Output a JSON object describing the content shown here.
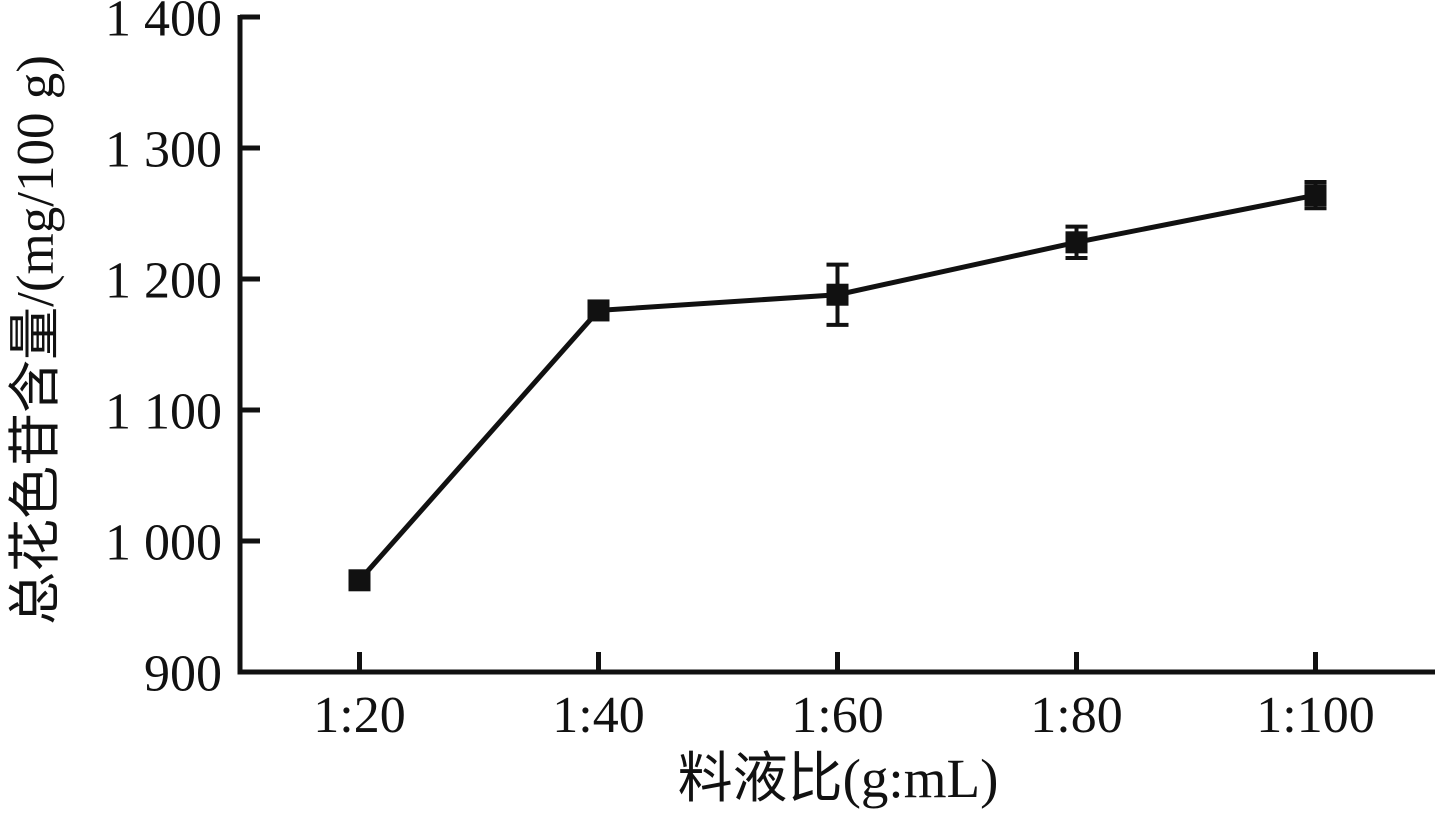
{
  "chart_data": {
    "type": "line",
    "title": "",
    "xlabel": "料液比(g:mL)",
    "ylabel": "总花色苷含量/(mg/100 g)",
    "categories": [
      "1:20",
      "1:40",
      "1:60",
      "1:80",
      "1:100"
    ],
    "series": [
      {
        "name": "总花色苷含量",
        "values": [
          970,
          1176,
          1188,
          1228,
          1264
        ],
        "errors": [
          0,
          0,
          23,
          12,
          10
        ]
      }
    ],
    "ylim": [
      900,
      1400
    ],
    "yticks": [
      {
        "value": 900,
        "label": "900"
      },
      {
        "value": 1000,
        "label": "1 000"
      },
      {
        "value": 1100,
        "label": "1 100"
      },
      {
        "value": 1200,
        "label": "1 200"
      },
      {
        "value": 1300,
        "label": "1 300"
      },
      {
        "value": 1400,
        "label": "1 400"
      }
    ],
    "marker": "square",
    "grid": false,
    "legend": null,
    "colors": {
      "ink": "#111111",
      "background": "#ffffff"
    }
  }
}
